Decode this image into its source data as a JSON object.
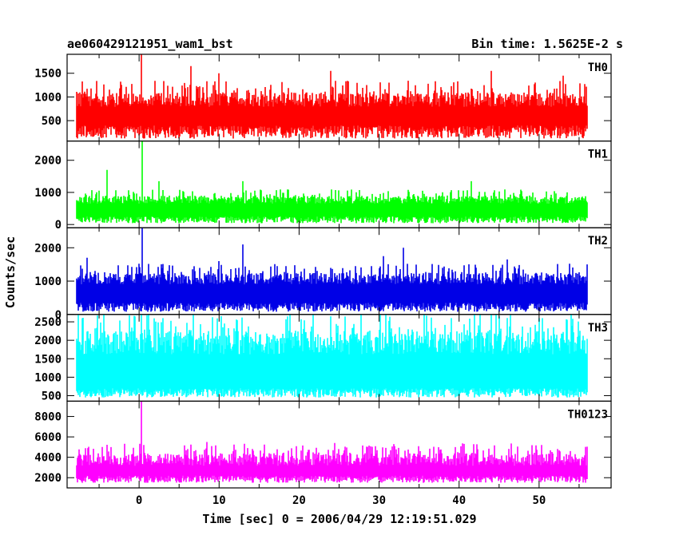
{
  "chart_data": {
    "type": "line",
    "title": "ae060429121951_wam1_bst",
    "subtitle": "Bin time: 1.5625E-2 s",
    "xlabel": "Time [sec] 0 = 2006/04/29 12:19:51.029",
    "ylabel": "Counts/sec",
    "xlim": [
      -9,
      59
    ],
    "x_ticks": [
      0,
      10,
      20,
      30,
      40,
      50
    ],
    "x_data_range": [
      -7.8,
      56.0
    ],
    "grid": false,
    "panels": [
      {
        "name": "TH0",
        "color": "#ff0000",
        "ylim": [
          70,
          1900
        ],
        "y_ticks": [
          500,
          1000,
          1500
        ],
        "baseline": [
          120,
          400
        ],
        "typical_max": 1100,
        "peaks": [
          {
            "x": 0.3,
            "y": 1900
          },
          {
            "x": 6.5,
            "y": 1650
          },
          {
            "x": 10.0,
            "y": 1500
          },
          {
            "x": 24.0,
            "y": 1550
          },
          {
            "x": 44.0,
            "y": 1550
          },
          {
            "x": 53.0,
            "y": 1450
          }
        ]
      },
      {
        "name": "TH1",
        "color": "#00ff00",
        "ylim": [
          -100,
          2600
        ],
        "y_ticks": [
          0,
          1000,
          2000
        ],
        "baseline": [
          40,
          250
        ],
        "typical_max": 900,
        "peaks": [
          {
            "x": 0.4,
            "y": 2600
          },
          {
            "x": -4.0,
            "y": 1700
          },
          {
            "x": 2.5,
            "y": 1350
          },
          {
            "x": 13.0,
            "y": 1350
          },
          {
            "x": 41.5,
            "y": 1350
          }
        ]
      },
      {
        "name": "TH2",
        "color": "#0000e6",
        "ylim": [
          0,
          2600
        ],
        "y_ticks": [
          0,
          1000,
          2000
        ],
        "baseline": [
          80,
          350
        ],
        "typical_max": 1250,
        "peaks": [
          {
            "x": 0.4,
            "y": 2600
          },
          {
            "x": 13.0,
            "y": 2100
          },
          {
            "x": 33.0,
            "y": 2000
          },
          {
            "x": -6.5,
            "y": 1700
          },
          {
            "x": 10.0,
            "y": 1600
          },
          {
            "x": 30.5,
            "y": 1750
          },
          {
            "x": 46.0,
            "y": 1650
          }
        ]
      },
      {
        "name": "TH3",
        "color": "#00ffff",
        "ylim": [
          350,
          2700
        ],
        "y_ticks": [
          500,
          1000,
          1500,
          2000,
          2500
        ],
        "baseline": [
          450,
          700
        ],
        "typical_max": 2250,
        "peaks": [
          {
            "x": 0.3,
            "y": 2700
          },
          {
            "x": 3.0,
            "y": 2600
          },
          {
            "x": 24.0,
            "y": 2650
          },
          {
            "x": 39.0,
            "y": 2600
          },
          {
            "x": 45.0,
            "y": 2650
          },
          {
            "x": 50.0,
            "y": 2600
          }
        ]
      },
      {
        "name": "TH0123",
        "color": "#ff00ff",
        "ylim": [
          1000,
          9500
        ],
        "y_ticks": [
          2000,
          4000,
          6000,
          8000
        ],
        "baseline": [
          1500,
          2200
        ],
        "typical_max": 4400,
        "peaks": [
          {
            "x": 0.3,
            "y": 9500
          },
          {
            "x": 8.5,
            "y": 5500
          },
          {
            "x": 24.5,
            "y": 5400
          },
          {
            "x": -3.5,
            "y": 5000
          },
          {
            "x": 39.5,
            "y": 5000
          }
        ]
      }
    ]
  }
}
